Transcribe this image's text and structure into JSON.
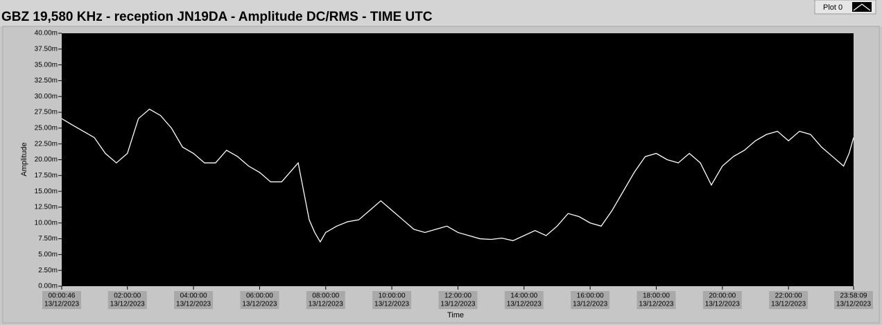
{
  "chart_data": {
    "type": "line",
    "title": "GBZ  19,580 KHz - reception JN19DA -  Amplitude DC/RMS   - TIME UTC",
    "y_label": "Amplitude",
    "x_label": "Time",
    "legend": "top-right",
    "background": "#000000",
    "xlim": [
      "2023-12-13T00:00:46",
      "2023-12-13T23:58:09"
    ],
    "xticks": [
      {
        "value": "2023-12-13T00:00:46",
        "label": [
          "00:00:46",
          "13/12/2023"
        ]
      },
      {
        "value": "2023-12-13T02:00:00",
        "label": [
          "02:00:00",
          "13/12/2023"
        ]
      },
      {
        "value": "2023-12-13T04:00:00",
        "label": [
          "04:00:00",
          "13/12/2023"
        ]
      },
      {
        "value": "2023-12-13T06:00:00",
        "label": [
          "06:00:00",
          "13/12/2023"
        ]
      },
      {
        "value": "2023-12-13T08:00:00",
        "label": [
          "08:00:00",
          "13/12/2023"
        ]
      },
      {
        "value": "2023-12-13T10:00:00",
        "label": [
          "10:00:00",
          "13/12/2023"
        ]
      },
      {
        "value": "2023-12-13T12:00:00",
        "label": [
          "12:00:00",
          "13/12/2023"
        ]
      },
      {
        "value": "2023-12-13T14:00:00",
        "label": [
          "14:00:00",
          "13/12/2023"
        ]
      },
      {
        "value": "2023-12-13T16:00:00",
        "label": [
          "16:00:00",
          "13/12/2023"
        ]
      },
      {
        "value": "2023-12-13T18:00:00",
        "label": [
          "18:00:00",
          "13/12/2023"
        ]
      },
      {
        "value": "2023-12-13T20:00:00",
        "label": [
          "20:00:00",
          "13/12/2023"
        ]
      },
      {
        "value": "2023-12-13T22:00:00",
        "label": [
          "22:00:00",
          "13/12/2023"
        ]
      },
      {
        "value": "2023-12-13T23:58:09",
        "label": [
          "23:58:09",
          "13/12/2023"
        ]
      }
    ],
    "ylim": [
      0,
      40
    ],
    "yticks": [
      {
        "value": 0,
        "label": "0.00m"
      },
      {
        "value": 2.5,
        "label": "2.50m"
      },
      {
        "value": 5,
        "label": "5.00m"
      },
      {
        "value": 7.5,
        "label": "7.50m"
      },
      {
        "value": 10,
        "label": "10.00m"
      },
      {
        "value": 12.5,
        "label": "12.50m"
      },
      {
        "value": 15,
        "label": "15.00m"
      },
      {
        "value": 17.5,
        "label": "17.50m"
      },
      {
        "value": 20,
        "label": "20.00m"
      },
      {
        "value": 22.5,
        "label": "22.50m"
      },
      {
        "value": 25,
        "label": "25.00m"
      },
      {
        "value": 27.5,
        "label": "27.50m"
      },
      {
        "value": 30,
        "label": "30.00m"
      },
      {
        "value": 32.5,
        "label": "32.50m"
      },
      {
        "value": 35,
        "label": "35.00m"
      },
      {
        "value": 37.5,
        "label": "37.50m"
      },
      {
        "value": 40,
        "label": "40.00m"
      }
    ],
    "x": [
      "2023-12-13T00:00:46",
      "2023-12-13T00:20:00",
      "2023-12-13T00:40:00",
      "2023-12-13T01:00:00",
      "2023-12-13T01:20:00",
      "2023-12-13T01:40:00",
      "2023-12-13T02:00:00",
      "2023-12-13T02:20:00",
      "2023-12-13T02:40:00",
      "2023-12-13T03:00:00",
      "2023-12-13T03:20:00",
      "2023-12-13T03:40:00",
      "2023-12-13T04:00:00",
      "2023-12-13T04:20:00",
      "2023-12-13T04:40:00",
      "2023-12-13T05:00:00",
      "2023-12-13T05:20:00",
      "2023-12-13T05:40:00",
      "2023-12-13T06:00:00",
      "2023-12-13T06:20:00",
      "2023-12-13T06:40:00",
      "2023-12-13T07:00:00",
      "2023-12-13T07:10:00",
      "2023-12-13T07:20:00",
      "2023-12-13T07:30:00",
      "2023-12-13T07:40:00",
      "2023-12-13T07:50:00",
      "2023-12-13T08:00:00",
      "2023-12-13T08:20:00",
      "2023-12-13T08:40:00",
      "2023-12-13T09:00:00",
      "2023-12-13T09:20:00",
      "2023-12-13T09:40:00",
      "2023-12-13T10:00:00",
      "2023-12-13T10:20:00",
      "2023-12-13T10:40:00",
      "2023-12-13T11:00:00",
      "2023-12-13T11:20:00",
      "2023-12-13T11:40:00",
      "2023-12-13T12:00:00",
      "2023-12-13T12:20:00",
      "2023-12-13T12:40:00",
      "2023-12-13T13:00:00",
      "2023-12-13T13:20:00",
      "2023-12-13T13:40:00",
      "2023-12-13T14:00:00",
      "2023-12-13T14:20:00",
      "2023-12-13T14:40:00",
      "2023-12-13T15:00:00",
      "2023-12-13T15:20:00",
      "2023-12-13T15:40:00",
      "2023-12-13T16:00:00",
      "2023-12-13T16:20:00",
      "2023-12-13T16:40:00",
      "2023-12-13T17:00:00",
      "2023-12-13T17:20:00",
      "2023-12-13T17:40:00",
      "2023-12-13T18:00:00",
      "2023-12-13T18:20:00",
      "2023-12-13T18:40:00",
      "2023-12-13T19:00:00",
      "2023-12-13T19:20:00",
      "2023-12-13T19:40:00",
      "2023-12-13T20:00:00",
      "2023-12-13T20:20:00",
      "2023-12-13T20:40:00",
      "2023-12-13T21:00:00",
      "2023-12-13T21:20:00",
      "2023-12-13T21:40:00",
      "2023-12-13T22:00:00",
      "2023-12-13T22:20:00",
      "2023-12-13T22:40:00",
      "2023-12-13T23:00:00",
      "2023-12-13T23:20:00",
      "2023-12-13T23:40:00",
      "2023-12-13T23:50:00",
      "2023-12-13T23:58:09"
    ],
    "series": [
      {
        "name": "Plot 0",
        "color": "#ffffff",
        "values": [
          26.5,
          25.5,
          24.5,
          23.5,
          21,
          19.5,
          21,
          26.5,
          28,
          27,
          25,
          22,
          21,
          19.5,
          19.5,
          21.5,
          20.5,
          19,
          18,
          16.5,
          16.5,
          18.5,
          19.5,
          15,
          10.5,
          8.5,
          7,
          8.5,
          9.5,
          10.2,
          10.5,
          12,
          13.5,
          12,
          10.5,
          9,
          8.5,
          9,
          9.5,
          8.5,
          8,
          7.5,
          7.4,
          7.6,
          7.2,
          8,
          8.8,
          8,
          9.5,
          11.5,
          11,
          10,
          9.5,
          12,
          15,
          18,
          20.5,
          21,
          20,
          19.5,
          21,
          19.5,
          16,
          19,
          20.5,
          21.5,
          23,
          24,
          24.5,
          23,
          24.5,
          24,
          22,
          20.5,
          19,
          21,
          23.5
        ]
      }
    ]
  }
}
